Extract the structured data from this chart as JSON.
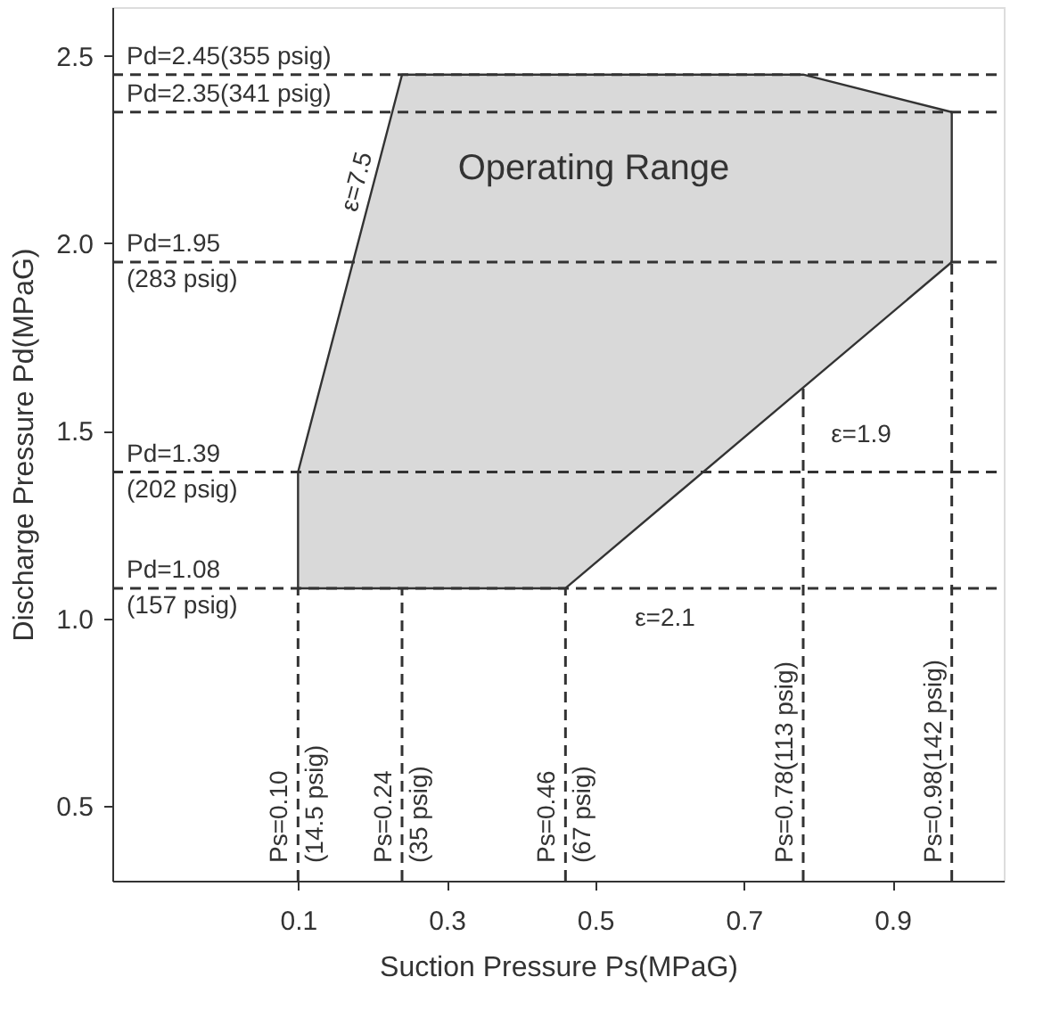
{
  "chart_data": {
    "type": "area",
    "xlabel": "Suction Pressure  Ps(MPaG)",
    "ylabel": "Discharge Pressure  Pd(MPaG)",
    "series": [
      {
        "color": "#d9d9d9",
        "x": [
          0.1,
          0.1,
          0.24,
          0.78,
          0.98,
          0.98,
          0.46,
          0.1
        ],
        "values": [
          1.08,
          1.39,
          2.45,
          2.45,
          2.35,
          1.95,
          1.08,
          1.08
        ]
      }
    ],
    "xlim": [
      -0.15,
      1.05
    ],
    "ylim": [
      0.3,
      2.63
    ],
    "xticks": [
      0.1,
      0.3,
      0.5,
      0.7,
      0.9
    ],
    "yticks": [
      0.5,
      {
        "value": 1.0,
        "label": "1.0"
      },
      1.5,
      {
        "value": 2.0,
        "label": "2.0"
      },
      2.5
    ],
    "ref_lines": [
      {
        "axis": "y",
        "value": 2.45,
        "label": "Pd=2.45(355 psig)",
        "color": "#333333",
        "line_style": "dashed"
      },
      {
        "axis": "y",
        "value": 2.35,
        "label": "Pd=2.35(341 psig)",
        "color": "#333333",
        "line_style": "dashed"
      },
      {
        "axis": "y",
        "value": 1.95,
        "label": "Pd=1.95\n(283 psig)",
        "color": "#333333",
        "line_style": "dashed"
      },
      {
        "axis": "y",
        "value": 1.39,
        "label": "Pd=1.39\n(202 psig)",
        "color": "#333333",
        "line_style": "dashed"
      },
      {
        "axis": "y",
        "value": 1.08,
        "label": "Pd=1.08\n(157 psig)",
        "color": "#333333",
        "line_style": "dashed"
      },
      {
        "axis": "x",
        "value": 0.1,
        "label": "Ps=0.10\n(14.5 psig)",
        "color": "#333333",
        "line_style": "dashed"
      },
      {
        "axis": "x",
        "value": 0.24,
        "label": "Ps=0.24\n(35 psig)",
        "color": "#333333",
        "line_style": "dashed"
      },
      {
        "axis": "x",
        "value": 0.46,
        "label": "Ps=0.46\n(67 psig)",
        "color": "#333333",
        "line_style": "dashed"
      },
      {
        "axis": "x",
        "value": 0.78,
        "label": "Ps=0.78(113 psig)",
        "color": "#333333",
        "line_style": "dashed"
      },
      {
        "axis": "x",
        "value": 0.98,
        "label": "Ps=0.98(142 psig)",
        "color": "#333333",
        "line_style": "dashed"
      }
    ],
    "annotations": [
      "Operating Range",
      "ε=7.5",
      "ε=2.1",
      "ε=1.9"
    ],
    "grid": false
  }
}
